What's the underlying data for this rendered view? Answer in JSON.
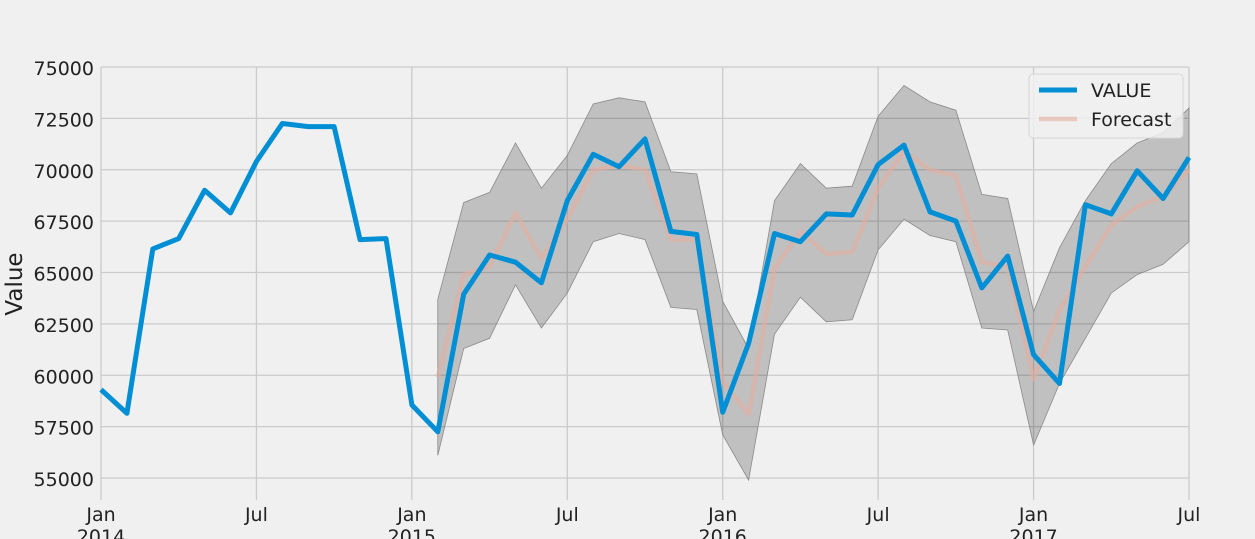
{
  "chart_data": {
    "type": "line",
    "title": "",
    "xlabel": "",
    "ylabel": "Value",
    "ylim": [
      54000,
      75000
    ],
    "xlim": [
      "2014-01",
      "2017-07"
    ],
    "grid": true,
    "legend_position": "top-right",
    "yticks": [
      55000,
      57500,
      60000,
      62500,
      65000,
      67500,
      70000,
      72500,
      75000
    ],
    "ytick_labels": [
      "55000",
      "57500",
      "60000",
      "62500",
      "65000",
      "67500",
      "70000",
      "72500",
      "75000"
    ],
    "xticks": [
      {
        "date": "2014-01",
        "label": "Jan",
        "year": "2014"
      },
      {
        "date": "2014-07",
        "label": "Jul",
        "year": ""
      },
      {
        "date": "2015-01",
        "label": "Jan",
        "year": "2015"
      },
      {
        "date": "2015-07",
        "label": "Jul",
        "year": ""
      },
      {
        "date": "2016-01",
        "label": "Jan",
        "year": "2016"
      },
      {
        "date": "2016-07",
        "label": "Jul",
        "year": ""
      },
      {
        "date": "2017-01",
        "label": "Jan",
        "year": "2017"
      },
      {
        "date": "2017-07",
        "label": "Jul",
        "year": ""
      }
    ],
    "series": [
      {
        "name": "VALUE",
        "color": "#008fd5",
        "x": [
          "2014-01",
          "2014-02",
          "2014-03",
          "2014-04",
          "2014-05",
          "2014-06",
          "2014-07",
          "2014-08",
          "2014-09",
          "2014-10",
          "2014-11",
          "2014-12",
          "2015-01",
          "2015-02",
          "2015-03",
          "2015-04",
          "2015-05",
          "2015-06",
          "2015-07",
          "2015-08",
          "2015-09",
          "2015-10",
          "2015-11",
          "2015-12",
          "2016-01",
          "2016-02",
          "2016-03",
          "2016-04",
          "2016-05",
          "2016-06",
          "2016-07",
          "2016-08",
          "2016-09",
          "2016-10",
          "2016-11",
          "2016-12",
          "2017-01",
          "2017-02",
          "2017-03",
          "2017-04",
          "2017-05",
          "2017-06",
          "2017-07"
        ],
        "values": [
          59300,
          58150,
          66150,
          66650,
          69000,
          67900,
          70400,
          72250,
          72100,
          72100,
          66600,
          66650,
          58550,
          57250,
          63950,
          65850,
          65500,
          64500,
          68500,
          70750,
          70150,
          71500,
          67000,
          66850,
          58200,
          61550,
          66900,
          66500,
          67850,
          67800,
          70250,
          71200,
          67950,
          67500,
          64250,
          65800,
          61000,
          59600,
          68300,
          67850,
          69950,
          68600,
          70600
        ]
      },
      {
        "name": "Forecast",
        "color": "#e5ae9e",
        "x": [
          "2015-02",
          "2015-03",
          "2015-04",
          "2015-05",
          "2015-06",
          "2015-07",
          "2015-08",
          "2015-09",
          "2015-10",
          "2015-11",
          "2015-12",
          "2016-01",
          "2016-02",
          "2016-03",
          "2016-04",
          "2016-05",
          "2016-06",
          "2016-07",
          "2016-08",
          "2016-09",
          "2016-10",
          "2016-11",
          "2016-12",
          "2017-01",
          "2017-02",
          "2017-03",
          "2017-04",
          "2017-05",
          "2017-06",
          "2017-07"
        ],
        "values": [
          59900,
          64900,
          65300,
          67900,
          65700,
          67600,
          70000,
          70200,
          70000,
          66600,
          66600,
          59700,
          58100,
          65200,
          67000,
          65900,
          66000,
          69100,
          70900,
          70000,
          69700,
          65500,
          65300,
          59800,
          63200,
          65300,
          67300,
          68200,
          68700,
          70000
        ],
        "lower": [
          56100,
          61300,
          61800,
          64400,
          62300,
          64000,
          66500,
          66900,
          66600,
          63300,
          63200,
          57100,
          54900,
          62000,
          63800,
          62600,
          62700,
          66100,
          67600,
          66800,
          66500,
          62300,
          62200,
          56600,
          59600,
          61800,
          64000,
          64900,
          65400,
          66500
        ],
        "upper": [
          63700,
          68400,
          68900,
          71300,
          69100,
          70700,
          73200,
          73500,
          73300,
          69900,
          69800,
          63600,
          61300,
          68500,
          70300,
          69100,
          69200,
          72600,
          74100,
          73300,
          72900,
          68800,
          68600,
          63100,
          66200,
          68500,
          70300,
          71300,
          71800,
          73000
        ]
      }
    ]
  }
}
